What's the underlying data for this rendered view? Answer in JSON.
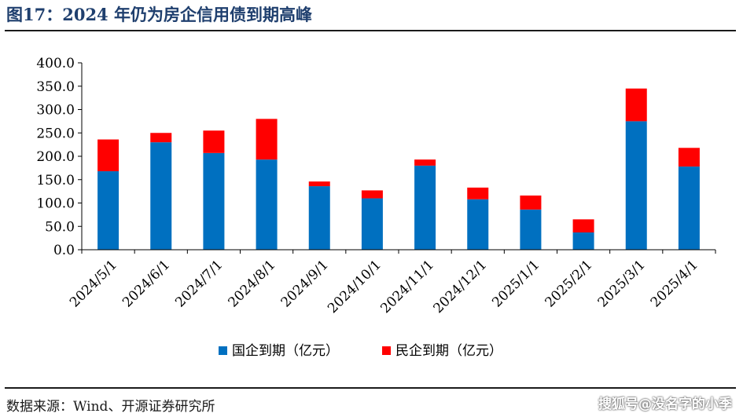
{
  "figure_title": "图17：2024 年仍为房企信用债到期高峰",
  "source_note": "数据来源：Wind、开源证券研究所",
  "watermark": "搜狐号@没名字的小季",
  "chart_data": {
    "type": "bar",
    "stacked": true,
    "title": "",
    "xlabel": "",
    "ylabel": "",
    "ylim": [
      0,
      400
    ],
    "yticks": [
      "0.0",
      "50.0",
      "100.0",
      "150.0",
      "200.0",
      "250.0",
      "300.0",
      "350.0",
      "400.0"
    ],
    "grid": false,
    "legend_position": "bottom",
    "categories": [
      "2024/5/1",
      "2024/6/1",
      "2024/7/1",
      "2024/8/1",
      "2024/9/1",
      "2024/10/1",
      "2024/11/1",
      "2024/12/1",
      "2025/1/1",
      "2025/2/1",
      "2025/3/1",
      "2025/4/1"
    ],
    "series": [
      {
        "name": "国企到期（亿元）",
        "color": "#0070c0",
        "values": [
          168,
          230,
          207,
          193,
          136,
          110,
          180,
          108,
          86,
          37,
          275,
          178
        ]
      },
      {
        "name": "民企到期（亿元）",
        "color": "#ff0000",
        "values": [
          68,
          20,
          48,
          87,
          10,
          17,
          13,
          25,
          30,
          28,
          70,
          40
        ]
      }
    ]
  }
}
